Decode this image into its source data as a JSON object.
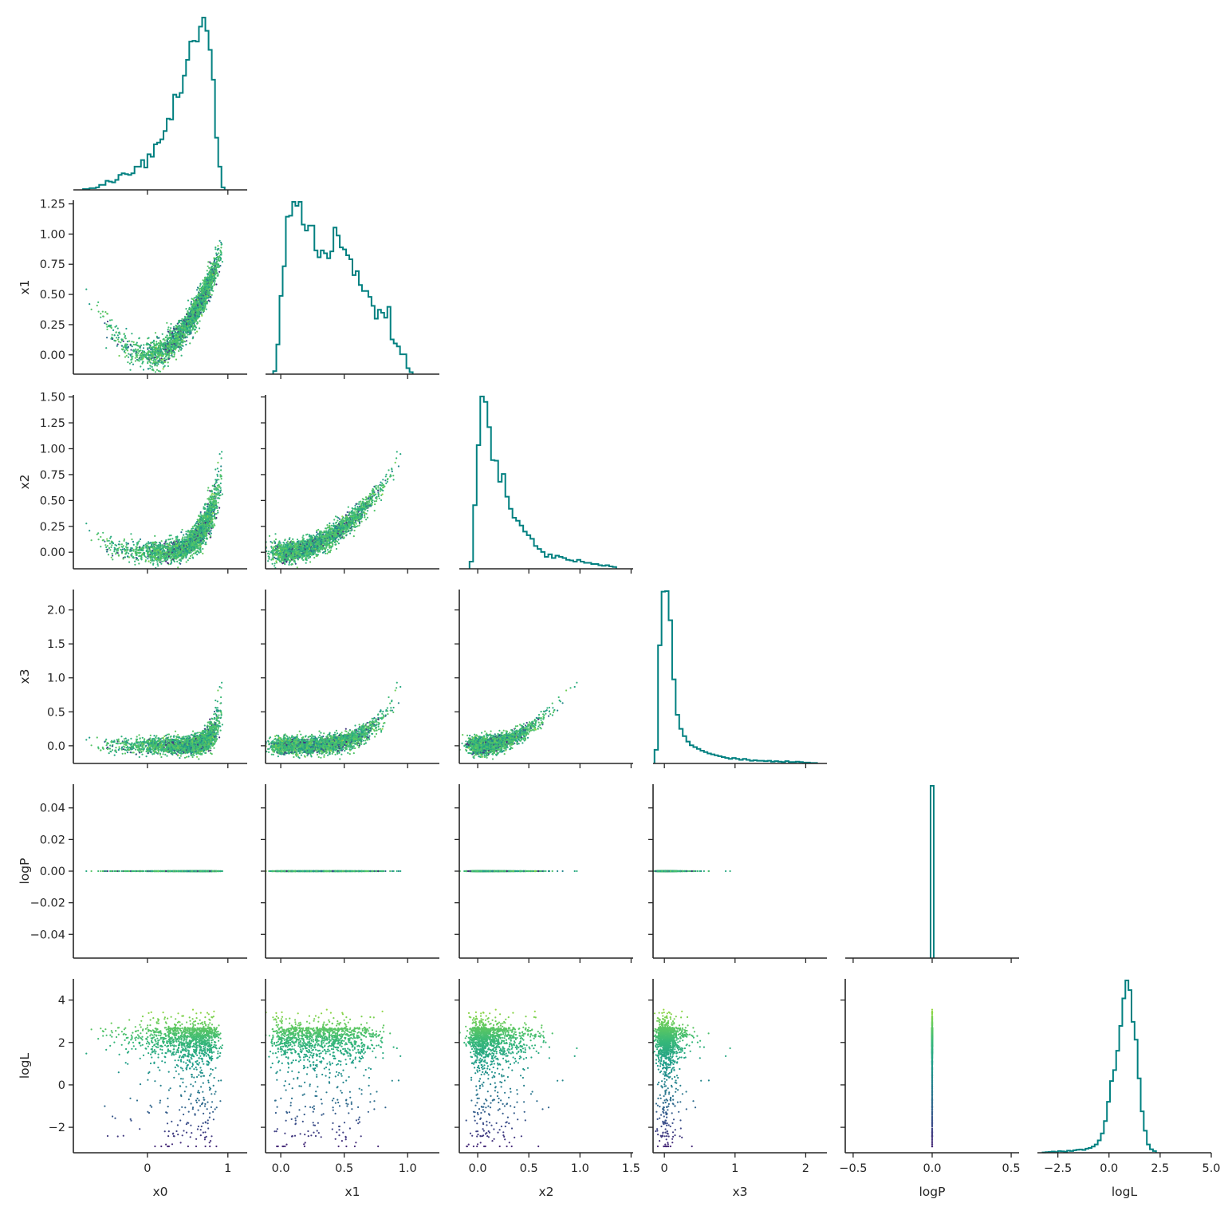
{
  "chart_data": {
    "type": "corner-plot",
    "parameters": [
      "x0",
      "x1",
      "x2",
      "x3",
      "logP",
      "logL"
    ],
    "grid": false,
    "colormap": "viridis",
    "color_by": "logL",
    "colors": {
      "histogram": "#008080",
      "axes": "#262626"
    },
    "axes": {
      "x0": {
        "range": [
          -0.92,
          1.24
        ],
        "ticks": [
          0,
          1
        ],
        "tick_labels": [
          "0",
          "1"
        ]
      },
      "x1": {
        "range": [
          -0.12,
          1.25
        ],
        "ticks": [
          0.0,
          0.5,
          1.0
        ],
        "tick_labels": [
          "0.0",
          "0.5",
          "1.0"
        ]
      },
      "x2": {
        "range": [
          -0.18,
          1.52
        ],
        "ticks": [
          0.0,
          0.5,
          1.0,
          1.5
        ],
        "tick_labels": [
          "0.0",
          "0.5",
          "1.0",
          "1.5"
        ]
      },
      "x3": {
        "range": [
          -0.16,
          2.3
        ],
        "ticks": [
          0,
          1,
          2
        ],
        "tick_labels": [
          "0",
          "1",
          "2"
        ]
      },
      "logP": {
        "range": [
          -0.55,
          0.55
        ],
        "ticks": [
          -0.5,
          0.0,
          0.5
        ],
        "tick_labels": [
          "−0.5",
          "0.0",
          "0.5"
        ]
      },
      "logL": {
        "range": [
          -3.5,
          5.0
        ],
        "ticks": [
          -2.5,
          0.0,
          2.5,
          5.0
        ],
        "tick_labels": [
          "−2.5",
          "0.0",
          "2.5",
          "5.0"
        ]
      }
    },
    "y_axes": {
      "x1": {
        "range": [
          -0.16,
          1.28
        ],
        "ticks": [
          0.0,
          0.25,
          0.5,
          0.75,
          1.0,
          1.25
        ],
        "tick_labels": [
          "0.00",
          "0.25",
          "0.50",
          "0.75",
          "1.00",
          "1.25"
        ]
      },
      "x2": {
        "range": [
          -0.16,
          1.52
        ],
        "ticks": [
          0.0,
          0.25,
          0.5,
          0.75,
          1.0,
          1.25,
          1.5
        ],
        "tick_labels": [
          "0.00",
          "0.25",
          "0.50",
          "0.75",
          "1.00",
          "1.25",
          "1.50"
        ]
      },
      "x3": {
        "range": [
          -0.26,
          2.3
        ],
        "ticks": [
          0.0,
          0.5,
          1.0,
          1.5,
          2.0
        ],
        "tick_labels": [
          "0.0",
          "0.5",
          "1.0",
          "1.5",
          "2.0"
        ]
      },
      "logP": {
        "range": [
          -0.055,
          0.055
        ],
        "ticks": [
          -0.04,
          -0.02,
          0.0,
          0.02,
          0.04
        ],
        "tick_labels": [
          "−0.04",
          "−0.02",
          "0.00",
          "0.02",
          "0.04"
        ]
      },
      "logL": {
        "range": [
          -3.2,
          5.0
        ],
        "ticks": [
          -2,
          0,
          2,
          4
        ],
        "tick_labels": [
          "−2",
          "0",
          "2",
          "4"
        ]
      }
    },
    "marginals": {
      "x0": {
        "bin_width": 0.04,
        "start": -0.8,
        "counts": [
          1,
          1,
          2,
          2,
          3,
          6,
          6,
          11,
          10,
          9,
          12,
          18,
          20,
          19,
          18,
          20,
          28,
          28,
          36,
          27,
          43,
          40,
          55,
          57,
          61,
          71,
          86,
          85,
          115,
          112,
          117,
          138,
          157,
          179,
          180,
          179,
          197,
          208,
          192,
          169,
          133,
          63,
          28,
          3
        ]
      },
      "x1": {
        "bin_width": 0.025,
        "start": -0.06,
        "counts": [
          3,
          30,
          79,
          109,
          159,
          160,
          174,
          170,
          174,
          151,
          145,
          150,
          150,
          125,
          118,
          125,
          122,
          117,
          124,
          148,
          140,
          128,
          126,
          120,
          116,
          100,
          104,
          90,
          84,
          84,
          78,
          69,
          56,
          65,
          62,
          57,
          68,
          35,
          31,
          28,
          20,
          20,
          6,
          2
        ]
      },
      "x2": {
        "bin_width": 0.035,
        "start": -0.08,
        "counts": [
          12,
          106,
          206,
          287,
          278,
          236,
          181,
          180,
          145,
          158,
          120,
          100,
          85,
          80,
          72,
          62,
          56,
          50,
          38,
          33,
          28,
          20,
          24,
          18,
          22,
          20,
          18,
          15,
          14,
          12,
          15,
          12,
          10,
          10,
          8,
          8,
          6,
          5,
          6,
          4,
          3
        ]
      },
      "x3": {
        "bin_width": 0.05,
        "start": -0.14,
        "counts": [
          30,
          260,
          378,
          379,
          315,
          185,
          107,
          76,
          60,
          48,
          40,
          36,
          32,
          28,
          25,
          22,
          20,
          18,
          16,
          14,
          12,
          10,
          12,
          10,
          8,
          10,
          8,
          6,
          7,
          6,
          6,
          5,
          6,
          4,
          5,
          4,
          3,
          5,
          3,
          3,
          4,
          3,
          2,
          2,
          1,
          1
        ]
      },
      "logP": {
        "bin_width": 0.02,
        "start": -0.01,
        "counts": [
          5000
        ]
      },
      "logL": {
        "bin_width": 0.15,
        "start": -3.25,
        "counts": [
          2,
          4,
          6,
          9,
          5,
          12,
          10,
          8,
          15,
          12,
          18,
          22,
          24,
          20,
          30,
          35,
          45,
          60,
          90,
          140,
          230,
          370,
          520,
          600,
          740,
          920,
          1120,
          1250,
          1180,
          950,
          820,
          540,
          300,
          160,
          60,
          25,
          12
        ]
      }
    },
    "scatter_trend": {
      "x1_vs_x0": "x1 ≈ x0² (banana)",
      "x2_vs_x1": "x2 ≈ x1²",
      "x3_vs_x2": "x3 ≈ x2²",
      "logP": "constant 0.00"
    }
  }
}
